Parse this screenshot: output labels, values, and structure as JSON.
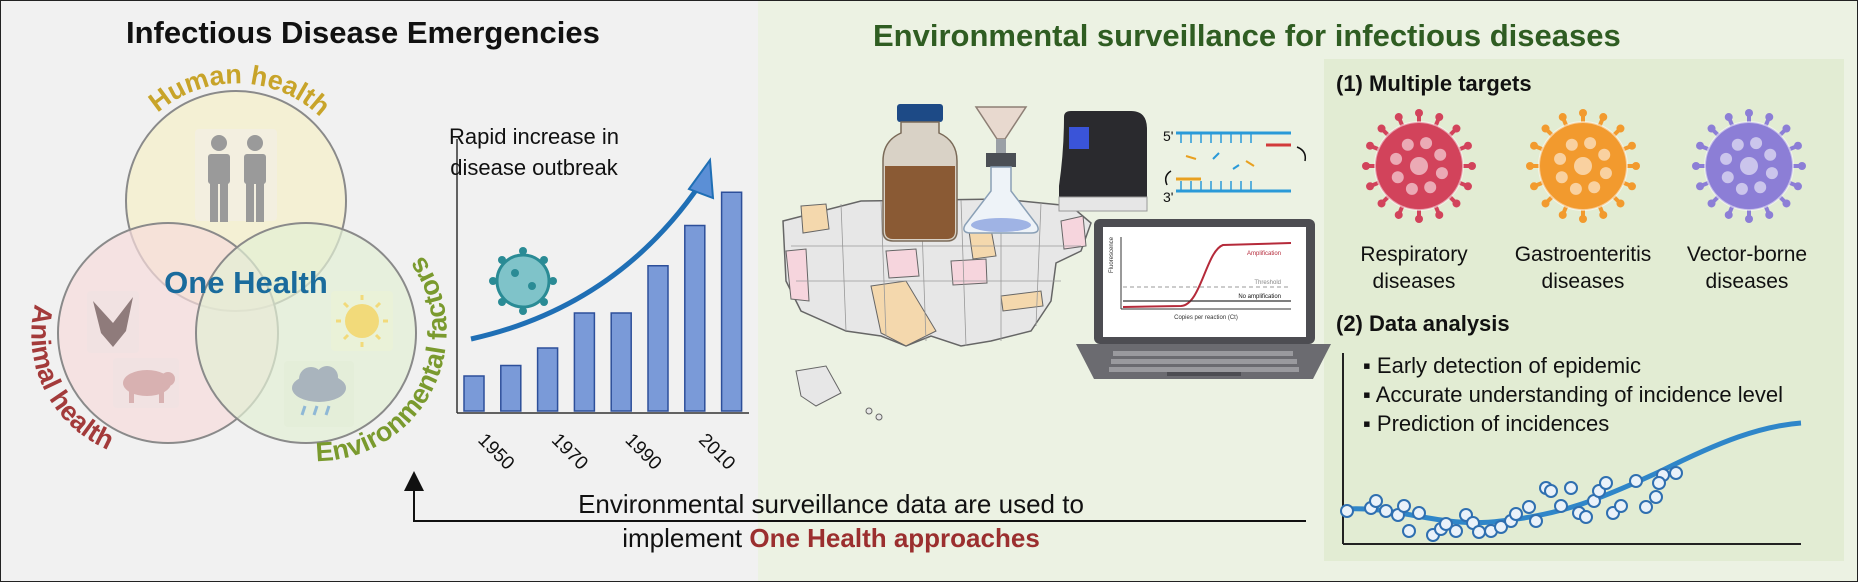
{
  "left_panel": {
    "title": "Infectious Disease Emergencies",
    "venn": {
      "center_label": "One Health",
      "circles": [
        {
          "label": "Human health",
          "color": "#c8a42a"
        },
        {
          "label": "Animal health",
          "color": "#a33a3a"
        },
        {
          "label": "Environmental factors",
          "color": "#7a9a2e"
        }
      ]
    },
    "chart_annotation": [
      "Rapid increase in",
      "disease outbreak"
    ],
    "chart_data": {
      "type": "bar",
      "x_tick_labels": [
        "1950",
        "1970",
        "1990",
        "2010"
      ],
      "values": [
        2,
        2.6,
        3.6,
        5.6,
        5.6,
        8.3,
        10.6,
        12.5
      ],
      "bar_color": "#7a9ad8",
      "trend_arrow_color": "#1f6fb5"
    }
  },
  "right_panel": {
    "title": "Environmental surveillance for infectious diseases",
    "pcr_labels": {
      "top": "5'",
      "bottom": "3'"
    },
    "amplification_plot": {
      "y_axis": "Fluorescence",
      "x_axis": "Copies per reaction (Ct)",
      "line_labels": [
        "Amplification",
        "Threshold",
        "No amplification"
      ]
    },
    "targets": {
      "heading": "(1) Multiple targets",
      "items": [
        {
          "label_lines": [
            "Respiratory",
            "diseases"
          ],
          "color": "#d2435b"
        },
        {
          "label_lines": [
            "Gastroenteritis",
            "diseases"
          ],
          "color": "#f29a2e"
        },
        {
          "label_lines": [
            "Vector-borne",
            "diseases"
          ],
          "color": "#8c7ed6"
        }
      ]
    },
    "analysis": {
      "heading": "(2) Data analysis",
      "bullets": [
        "Early detection of epidemic",
        "Accurate understanding of incidence level",
        "Prediction of incidences"
      ]
    }
  },
  "feedback": {
    "line1": "Environmental surveillance data are used to",
    "line2_prefix": "implement ",
    "line2_emphasis": "One Health approaches",
    "emphasis_color": "#9b2f2f"
  }
}
